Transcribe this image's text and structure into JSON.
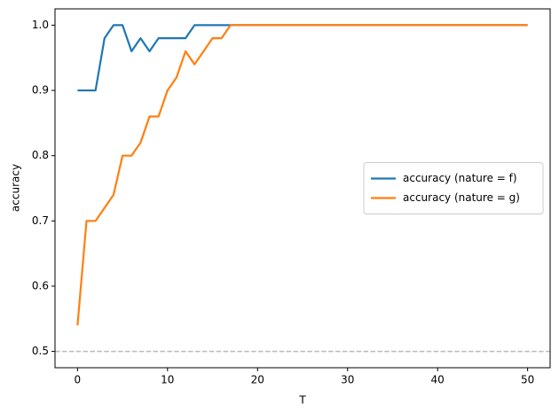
{
  "chart_data": {
    "type": "line",
    "x_label": "T",
    "y_label": "accuracy",
    "x": [
      0,
      1,
      2,
      3,
      4,
      5,
      6,
      7,
      8,
      9,
      10,
      11,
      12,
      13,
      14,
      15,
      16,
      17,
      18,
      19,
      20,
      21,
      22,
      23,
      24,
      25,
      26,
      27,
      28,
      29,
      30,
      31,
      32,
      33,
      34,
      35,
      36,
      37,
      38,
      39,
      40,
      41,
      42,
      43,
      44,
      45,
      46,
      47,
      48,
      49,
      50
    ],
    "series": [
      {
        "name": "accuracy (nature = f)",
        "color": "#1f77b4",
        "values": [
          0.9,
          0.9,
          0.9,
          0.98,
          1.0,
          1.0,
          0.96,
          0.98,
          0.96,
          0.98,
          0.98,
          0.98,
          0.98,
          1.0,
          1.0,
          1.0,
          1.0,
          1.0,
          1.0,
          1.0,
          1.0,
          1.0,
          1.0,
          1.0,
          1.0,
          1.0,
          1.0,
          1.0,
          1.0,
          1.0,
          1.0,
          1.0,
          1.0,
          1.0,
          1.0,
          1.0,
          1.0,
          1.0,
          1.0,
          1.0,
          1.0,
          1.0,
          1.0,
          1.0,
          1.0,
          1.0,
          1.0,
          1.0,
          1.0,
          1.0,
          1.0
        ]
      },
      {
        "name": "accuracy (nature = g)",
        "color": "#ff7f0e",
        "values": [
          0.54,
          0.7,
          0.7,
          0.72,
          0.74,
          0.8,
          0.8,
          0.82,
          0.86,
          0.86,
          0.9,
          0.92,
          0.96,
          0.94,
          0.96,
          0.98,
          0.98,
          1.0,
          1.0,
          1.0,
          1.0,
          1.0,
          1.0,
          1.0,
          1.0,
          1.0,
          1.0,
          1.0,
          1.0,
          1.0,
          1.0,
          1.0,
          1.0,
          1.0,
          1.0,
          1.0,
          1.0,
          1.0,
          1.0,
          1.0,
          1.0,
          1.0,
          1.0,
          1.0,
          1.0,
          1.0,
          1.0,
          1.0,
          1.0,
          1.0,
          1.0
        ]
      }
    ],
    "hline": 0.5,
    "hline_color": "#bbbbbb",
    "xlim": [
      -2.5,
      52.5
    ],
    "xticks": [
      0,
      10,
      20,
      30,
      40,
      50
    ],
    "ylim": [
      0.475,
      1.025
    ],
    "yticks": [
      0.5,
      0.6,
      0.7,
      0.8,
      0.9,
      {
        "value": 1,
        "label": "1.0"
      }
    ],
    "legend": "center right"
  }
}
